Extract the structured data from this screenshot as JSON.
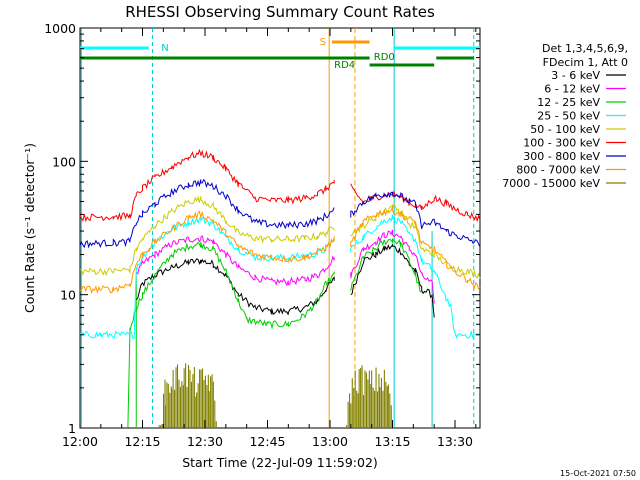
{
  "chart_data": {
    "type": "line",
    "title": "RHESSI Observing Summary Count Rates",
    "xlabel": "Start Time (22-Jul-09 11:59:02)",
    "ylabel": "Count Rate (s⁻¹ detector⁻¹)",
    "x_unit": "minutes after 12:00",
    "xlim": [
      0,
      96
    ],
    "ylim": [
      1,
      1000
    ],
    "y_scale": "log",
    "x_ticks": [
      {
        "label": "12:00",
        "t": 0
      },
      {
        "label": "12:15",
        "t": 15
      },
      {
        "label": "12:30",
        "t": 30
      },
      {
        "label": "12:45",
        "t": 45
      },
      {
        "label": "13:00",
        "t": 60
      },
      {
        "label": "13:15",
        "t": 75
      },
      {
        "label": "13:30",
        "t": 90
      }
    ],
    "y_ticks": [
      {
        "label": "1",
        "v": 1
      },
      {
        "label": "10",
        "v": 10
      },
      {
        "label": "100",
        "v": 100
      },
      {
        "label": "1000",
        "v": 1000
      }
    ],
    "legend_header": [
      "Det 1,3,4,5,6,9,",
      "FDecim 1, Att 0"
    ],
    "legend_placement": "right",
    "series": [
      {
        "name": "3 - 6 keV",
        "color": "#000000",
        "points": [
          [
            13.5,
            9
          ],
          [
            15,
            12
          ],
          [
            18,
            14
          ],
          [
            22,
            16
          ],
          [
            26,
            17.5
          ],
          [
            29,
            18
          ],
          [
            32,
            17
          ],
          [
            35,
            14
          ],
          [
            38,
            10
          ],
          [
            42,
            8
          ],
          [
            46,
            7.5
          ],
          [
            50,
            7.5
          ],
          [
            54,
            8
          ],
          [
            57,
            9
          ],
          [
            59,
            11
          ],
          [
            61,
            13
          ],
          [
            65,
            10
          ],
          [
            68,
            18
          ],
          [
            71,
            20
          ],
          [
            73,
            22
          ],
          [
            75,
            23
          ],
          [
            77,
            21
          ],
          [
            79,
            17
          ],
          [
            80.5,
            15
          ],
          [
            82,
            11
          ],
          [
            84.5,
            10
          ],
          [
            85,
            7
          ]
        ]
      },
      {
        "name": "6 - 12 keV",
        "color": "#ff00ff",
        "points": [
          [
            13.5,
            14
          ],
          [
            15,
            17
          ],
          [
            18,
            20
          ],
          [
            22,
            24
          ],
          [
            26,
            26
          ],
          [
            29,
            26.5
          ],
          [
            32,
            25
          ],
          [
            35,
            20
          ],
          [
            38,
            16
          ],
          [
            42,
            13.5
          ],
          [
            46,
            12.5
          ],
          [
            50,
            12.5
          ],
          [
            54,
            13
          ],
          [
            57,
            14
          ],
          [
            59,
            16
          ],
          [
            61,
            19
          ],
          [
            65,
            14
          ],
          [
            68,
            22
          ],
          [
            71,
            25
          ],
          [
            73,
            28
          ],
          [
            75,
            29
          ],
          [
            77,
            27
          ],
          [
            79,
            22
          ],
          [
            80.5,
            20
          ],
          [
            82,
            14
          ],
          [
            84.5,
            12
          ],
          [
            85,
            9
          ]
        ]
      },
      {
        "name": "12 - 25 keV",
        "color": "#00cc00",
        "points": [
          [
            11.5,
            1
          ],
          [
            12,
            5.5
          ],
          [
            13.5,
            8
          ],
          [
            15,
            10
          ],
          [
            18,
            14
          ],
          [
            22,
            20
          ],
          [
            26,
            23
          ],
          [
            29,
            24
          ],
          [
            32,
            22
          ],
          [
            35,
            15
          ],
          [
            38,
            9
          ],
          [
            40,
            6.5
          ],
          [
            45,
            6
          ],
          [
            50,
            6
          ],
          [
            54,
            7
          ],
          [
            57,
            9
          ],
          [
            59,
            12
          ],
          [
            61,
            14
          ],
          [
            65,
            11
          ],
          [
            68,
            19
          ],
          [
            71,
            22
          ],
          [
            73,
            25
          ],
          [
            75,
            26
          ],
          [
            77,
            24
          ],
          [
            79,
            18
          ],
          [
            80.5,
            14
          ],
          [
            82,
            10
          ]
        ]
      },
      {
        "name": "25 - 50 keV",
        "color": "#00ffff",
        "points": [
          [
            0,
            5
          ],
          [
            5,
            5
          ],
          [
            10,
            5
          ],
          [
            13,
            5
          ],
          [
            13.5,
            16
          ],
          [
            15,
            19
          ],
          [
            18,
            25
          ],
          [
            22,
            31
          ],
          [
            26,
            35
          ],
          [
            29,
            37
          ],
          [
            32,
            34
          ],
          [
            35,
            27
          ],
          [
            38,
            22
          ],
          [
            42,
            19
          ],
          [
            46,
            19
          ],
          [
            50,
            19
          ],
          [
            54,
            19.5
          ],
          [
            57,
            20.5
          ],
          [
            59,
            22
          ],
          [
            61,
            26
          ],
          [
            65,
            22
          ],
          [
            68,
            27
          ],
          [
            71,
            32
          ],
          [
            73,
            36
          ],
          [
            75,
            38
          ],
          [
            77,
            35
          ],
          [
            79,
            28
          ],
          [
            80.5,
            26
          ],
          [
            82,
            18
          ],
          [
            85,
            15
          ],
          [
            89,
            8
          ],
          [
            90,
            5
          ],
          [
            96,
            5
          ]
        ]
      },
      {
        "name": "50 - 100 keV",
        "color": "#cccc00",
        "points": [
          [
            0,
            15
          ],
          [
            8,
            15
          ],
          [
            12,
            15.5
          ],
          [
            13.5,
            22
          ],
          [
            15,
            26
          ],
          [
            18,
            33
          ],
          [
            22,
            42
          ],
          [
            26,
            50
          ],
          [
            29,
            52
          ],
          [
            32,
            46
          ],
          [
            35,
            36
          ],
          [
            38,
            29
          ],
          [
            42,
            26.5
          ],
          [
            46,
            26
          ],
          [
            50,
            26
          ],
          [
            54,
            26.5
          ],
          [
            57,
            27.5
          ],
          [
            59,
            29
          ],
          [
            61,
            32
          ],
          [
            65,
            29
          ],
          [
            68,
            33
          ],
          [
            71,
            38
          ],
          [
            73,
            43
          ],
          [
            75,
            46
          ],
          [
            77,
            42
          ],
          [
            79,
            34
          ],
          [
            80.5,
            32
          ],
          [
            82,
            22
          ],
          [
            85,
            20
          ],
          [
            89,
            16
          ],
          [
            93,
            15
          ],
          [
            96,
            14
          ]
        ]
      },
      {
        "name": "100 - 300 keV",
        "color": "#ff0000",
        "points": [
          [
            0,
            38
          ],
          [
            8,
            38.5
          ],
          [
            12,
            39
          ],
          [
            13.5,
            55
          ],
          [
            15,
            63
          ],
          [
            18,
            75
          ],
          [
            22,
            91
          ],
          [
            26,
            108
          ],
          [
            29,
            115
          ],
          [
            32,
            107
          ],
          [
            35,
            88
          ],
          [
            38,
            68
          ],
          [
            42,
            53
          ],
          [
            46,
            51
          ],
          [
            50,
            51
          ],
          [
            54,
            53
          ],
          [
            57,
            57
          ],
          [
            59,
            62
          ],
          [
            61,
            70
          ],
          [
            65,
            64
          ],
          [
            68,
            49
          ],
          [
            71,
            54
          ],
          [
            73,
            56
          ],
          [
            75,
            57
          ],
          [
            77,
            54
          ],
          [
            79,
            49
          ],
          [
            80.5,
            47
          ],
          [
            82,
            44
          ],
          [
            85,
            53
          ],
          [
            88,
            48
          ],
          [
            90,
            44
          ],
          [
            93,
            40
          ],
          [
            96,
            37
          ]
        ]
      },
      {
        "name": "300 - 800 keV",
        "color": "#0000cc",
        "points": [
          [
            0,
            24
          ],
          [
            8,
            24.5
          ],
          [
            12,
            25
          ],
          [
            13.5,
            35
          ],
          [
            15,
            40
          ],
          [
            18,
            48
          ],
          [
            22,
            59
          ],
          [
            26,
            67
          ],
          [
            29,
            70
          ],
          [
            32,
            65
          ],
          [
            35,
            55
          ],
          [
            38,
            43
          ],
          [
            42,
            35
          ],
          [
            46,
            33.5
          ],
          [
            50,
            33
          ],
          [
            54,
            34
          ],
          [
            57,
            36
          ],
          [
            59,
            39
          ],
          [
            61,
            43
          ],
          [
            65,
            40
          ],
          [
            68,
            50
          ],
          [
            71,
            55
          ],
          [
            73,
            57
          ],
          [
            75,
            58
          ],
          [
            77,
            55
          ],
          [
            79,
            50
          ],
          [
            80.5,
            48
          ],
          [
            82,
            33
          ],
          [
            85,
            35
          ],
          [
            88,
            30
          ],
          [
            90,
            28
          ],
          [
            93,
            26
          ],
          [
            96,
            24
          ]
        ]
      },
      {
        "name": "800 - 7000 keV",
        "color": "#ff9900",
        "points": [
          [
            0,
            11
          ],
          [
            8,
            11
          ],
          [
            12,
            12
          ],
          [
            13.5,
            17
          ],
          [
            15,
            20
          ],
          [
            18,
            25
          ],
          [
            22,
            31
          ],
          [
            26,
            38
          ],
          [
            29,
            40
          ],
          [
            32,
            36
          ],
          [
            35,
            29
          ],
          [
            38,
            23
          ],
          [
            42,
            20
          ],
          [
            46,
            19
          ],
          [
            50,
            18.5
          ],
          [
            54,
            19
          ],
          [
            57,
            21
          ],
          [
            59,
            22.5
          ],
          [
            61,
            26
          ],
          [
            65,
            24
          ],
          [
            68,
            35
          ],
          [
            71,
            40
          ],
          [
            73,
            42
          ],
          [
            75,
            43
          ],
          [
            77,
            40
          ],
          [
            79,
            37
          ],
          [
            80.5,
            35
          ],
          [
            82,
            24
          ],
          [
            85,
            22
          ],
          [
            88,
            17
          ],
          [
            90,
            15
          ],
          [
            93,
            13
          ],
          [
            96,
            11
          ]
        ]
      },
      {
        "name": "7000 - 15000 keV",
        "color": "#808000",
        "points": [
          [
            19,
            1
          ],
          [
            20.5,
            2
          ],
          [
            22,
            2.4
          ],
          [
            25,
            2.8
          ],
          [
            28,
            2.3
          ],
          [
            31,
            2.5
          ],
          [
            32,
            2
          ],
          [
            33,
            1
          ],
          [
            64,
            1
          ],
          [
            65,
            2.1
          ],
          [
            67,
            2.6
          ],
          [
            70,
            2.3
          ],
          [
            72,
            2.5
          ],
          [
            74,
            2.2
          ],
          [
            75,
            1
          ]
        ]
      }
    ],
    "annotations": {
      "night_label": "N",
      "saa_label": "S",
      "decimation_labels": [
        "RD0",
        "RD4"
      ]
    },
    "timestamp": "15-Oct-2021 07:50"
  }
}
